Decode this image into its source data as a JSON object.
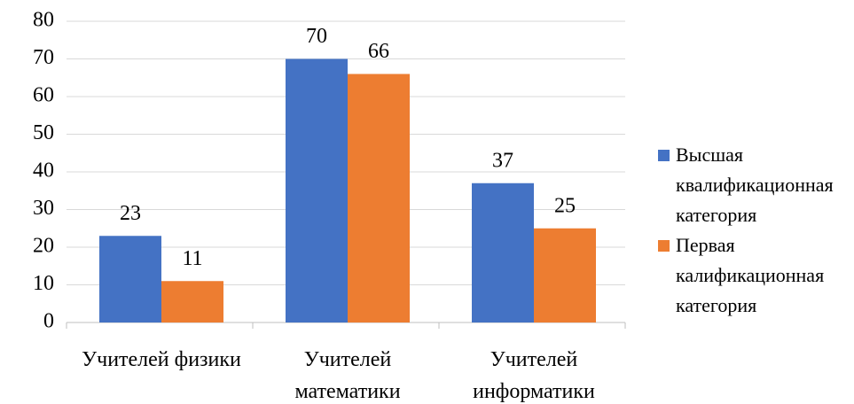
{
  "chart_data": {
    "type": "bar",
    "categories": [
      "Учителей физики",
      "Учителей математики",
      "Учителей информатики"
    ],
    "series": [
      {
        "name": "Высшая квалификационная категория",
        "color": "#4472c4",
        "values": [
          23,
          70,
          37
        ]
      },
      {
        "name": "Первая калификационная категория",
        "color": "#ed7d31",
        "values": [
          11,
          66,
          25
        ]
      }
    ],
    "ylim": [
      0,
      80
    ],
    "yticks": [
      0,
      10,
      20,
      30,
      40,
      50,
      60,
      70,
      80
    ],
    "grid": true,
    "legend": "right"
  }
}
